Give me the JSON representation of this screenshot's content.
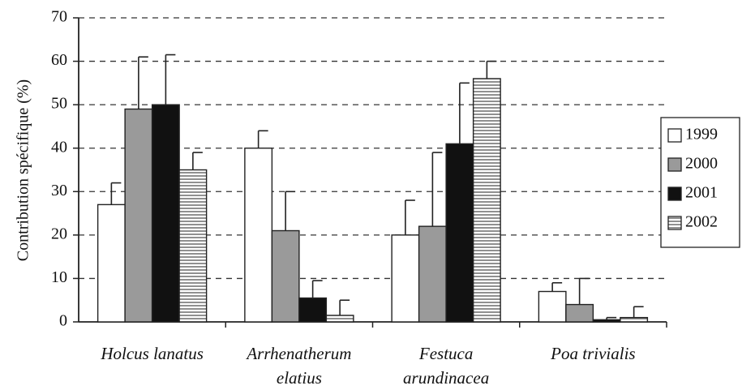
{
  "chart_data": {
    "type": "bar",
    "y_label": "Contribution spécifique (%)",
    "categories": [
      "Holcus lanatus",
      "Arrhenatherum\nelatius",
      "Festuca\narundinacea",
      "Poa trivialis"
    ],
    "series": [
      {
        "name": "1999",
        "color": "#ffffff",
        "values": [
          27,
          40,
          20,
          7
        ],
        "errors": [
          5,
          4,
          8,
          2
        ]
      },
      {
        "name": "2000",
        "color": "#9a9a9a",
        "values": [
          49,
          21,
          22,
          4
        ],
        "errors": [
          12,
          9,
          17,
          6
        ]
      },
      {
        "name": "2001",
        "color": "#111111",
        "values": [
          50,
          5.5,
          41,
          0.5
        ],
        "errors": [
          11.5,
          4,
          14,
          0.5
        ]
      },
      {
        "name": "2002",
        "color": "striped",
        "values": [
          35,
          1.5,
          56,
          1
        ],
        "errors": [
          4,
          3.5,
          4,
          2.5
        ]
      }
    ],
    "ylim": [
      0,
      70
    ],
    "yticks": [
      0,
      10,
      20,
      30,
      40,
      50,
      60,
      70
    ],
    "grid": true,
    "legend": "right"
  }
}
